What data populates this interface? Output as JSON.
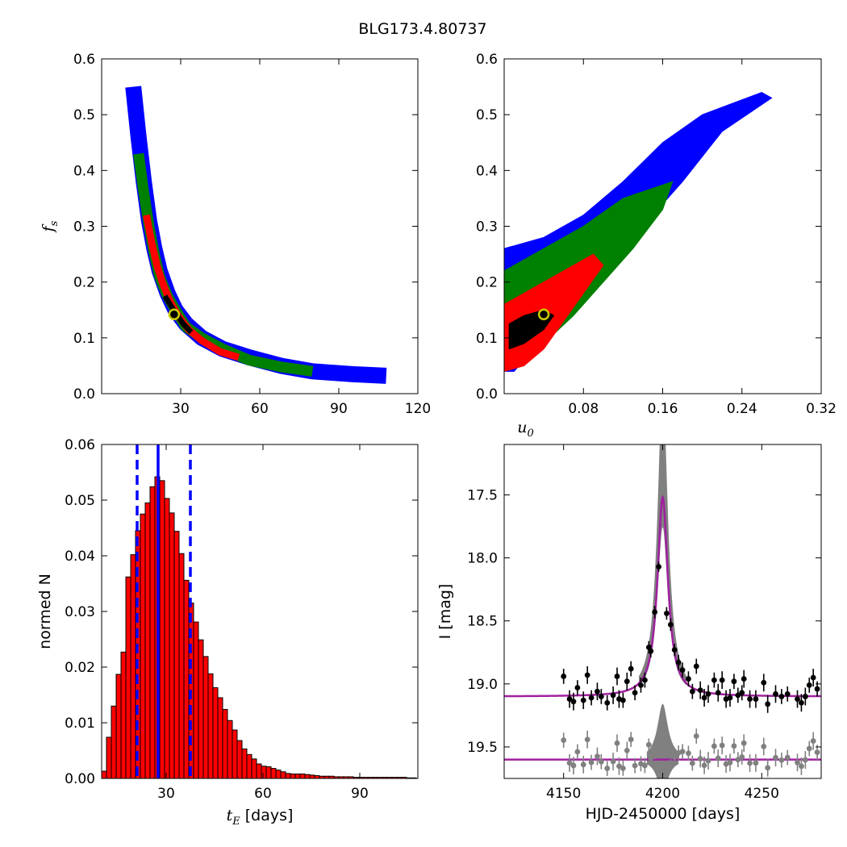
{
  "title": "BLG173.4.80737",
  "colors": {
    "blue": "#0000ff",
    "green": "#008000",
    "red": "#ff0000",
    "black": "#000000",
    "gray": "#808080",
    "purple": "#a020a0",
    "marker_face": "#000000",
    "marker_edge": "#cccc00"
  },
  "chart_data": [
    {
      "id": "tE-fs",
      "type": "heatmap",
      "xlabel": "",
      "ylabel": "f_s",
      "xlim": [
        0,
        120
      ],
      "ylim": [
        0.0,
        0.6
      ],
      "xticks": [
        "30",
        "60",
        "90",
        "120"
      ],
      "yticks": [
        "0.0",
        "0.1",
        "0.2",
        "0.3",
        "0.4",
        "0.5",
        "0.6"
      ],
      "bands": [
        {
          "level": "blue",
          "path": [
            [
              12,
              0.55
            ],
            [
              14,
              0.46
            ],
            [
              16,
              0.38
            ],
            [
              18,
              0.31
            ],
            [
              20,
              0.26
            ],
            [
              22,
              0.22
            ],
            [
              25,
              0.18
            ],
            [
              28,
              0.15
            ],
            [
              32,
              0.125
            ],
            [
              38,
              0.1
            ],
            [
              46,
              0.08
            ],
            [
              56,
              0.065
            ],
            [
              68,
              0.05
            ],
            [
              80,
              0.04
            ],
            [
              95,
              0.035
            ],
            [
              108,
              0.032
            ]
          ],
          "width": 0.018
        },
        {
          "level": "green",
          "path": [
            [
              14,
              0.43
            ],
            [
              16,
              0.36
            ],
            [
              18,
              0.3
            ],
            [
              20,
              0.25
            ],
            [
              22,
              0.21
            ],
            [
              25,
              0.175
            ],
            [
              28,
              0.15
            ],
            [
              32,
              0.12
            ],
            [
              38,
              0.1
            ],
            [
              46,
              0.08
            ],
            [
              56,
              0.06
            ],
            [
              68,
              0.048
            ],
            [
              80,
              0.04
            ]
          ],
          "width": 0.012
        },
        {
          "level": "red",
          "path": [
            [
              17,
              0.32
            ],
            [
              19,
              0.27
            ],
            [
              21,
              0.23
            ],
            [
              23,
              0.2
            ],
            [
              26,
              0.165
            ],
            [
              29,
              0.14
            ],
            [
              33,
              0.115
            ],
            [
              38,
              0.095
            ],
            [
              45,
              0.075
            ],
            [
              52,
              0.065
            ]
          ],
          "width": 0.008
        },
        {
          "level": "black",
          "path": [
            [
              24,
              0.175
            ],
            [
              26,
              0.16
            ],
            [
              28,
              0.145
            ],
            [
              31,
              0.125
            ],
            [
              34,
              0.11
            ]
          ],
          "width": 0.006
        }
      ],
      "best_fit": {
        "x": 27.5,
        "y": 0.142
      }
    },
    {
      "id": "u0-fs",
      "type": "heatmap",
      "xlabel": "u_0",
      "ylabel": "",
      "xlim": [
        0.0,
        0.32
      ],
      "ylim": [
        0.0,
        0.6
      ],
      "xticks": [
        "0.08",
        "0.16",
        "0.24",
        "0.32"
      ],
      "yticks": [
        "0.0",
        "0.1",
        "0.2",
        "0.3",
        "0.4",
        "0.5",
        "0.6"
      ],
      "regions": [
        {
          "level": "blue",
          "polygon": [
            [
              0.0,
              0.26
            ],
            [
              0.04,
              0.28
            ],
            [
              0.08,
              0.32
            ],
            [
              0.12,
              0.38
            ],
            [
              0.16,
              0.45
            ],
            [
              0.2,
              0.5
            ],
            [
              0.26,
              0.54
            ],
            [
              0.27,
              0.53
            ],
            [
              0.22,
              0.47
            ],
            [
              0.18,
              0.38
            ],
            [
              0.14,
              0.3
            ],
            [
              0.1,
              0.22
            ],
            [
              0.06,
              0.14
            ],
            [
              0.03,
              0.08
            ],
            [
              0.01,
              0.04
            ],
            [
              0.0,
              0.04
            ]
          ]
        },
        {
          "level": "green",
          "polygon": [
            [
              0.0,
              0.22
            ],
            [
              0.04,
              0.26
            ],
            [
              0.08,
              0.3
            ],
            [
              0.12,
              0.35
            ],
            [
              0.17,
              0.38
            ],
            [
              0.16,
              0.33
            ],
            [
              0.13,
              0.26
            ],
            [
              0.1,
              0.2
            ],
            [
              0.07,
              0.14
            ],
            [
              0.04,
              0.09
            ],
            [
              0.02,
              0.05
            ],
            [
              0.0,
              0.04
            ]
          ]
        },
        {
          "level": "red",
          "polygon": [
            [
              0.0,
              0.16
            ],
            [
              0.03,
              0.19
            ],
            [
              0.06,
              0.22
            ],
            [
              0.09,
              0.25
            ],
            [
              0.1,
              0.23
            ],
            [
              0.08,
              0.18
            ],
            [
              0.06,
              0.13
            ],
            [
              0.04,
              0.08
            ],
            [
              0.02,
              0.05
            ],
            [
              0.0,
              0.04
            ]
          ]
        },
        {
          "level": "black",
          "polygon": [
            [
              0.005,
              0.125
            ],
            [
              0.02,
              0.14
            ],
            [
              0.04,
              0.15
            ],
            [
              0.05,
              0.14
            ],
            [
              0.04,
              0.115
            ],
            [
              0.02,
              0.09
            ],
            [
              0.005,
              0.08
            ]
          ]
        }
      ],
      "best_fit": {
        "x": 0.04,
        "y": 0.142
      }
    },
    {
      "id": "tE-hist",
      "type": "bar",
      "xlabel": "t_E [days]",
      "ylabel": "normed N",
      "xlim": [
        10,
        108
      ],
      "ylim": [
        0.0,
        0.06
      ],
      "xticks": [
        "30",
        "60",
        "90"
      ],
      "yticks": [
        "0.00",
        "0.01",
        "0.02",
        "0.03",
        "0.04",
        "0.05",
        "0.06"
      ],
      "bin_start": 10,
      "bin_width": 1.5,
      "values": [
        0.0013,
        0.0074,
        0.013,
        0.0187,
        0.0227,
        0.0362,
        0.0402,
        0.0445,
        0.0475,
        0.0495,
        0.0524,
        0.0542,
        0.0535,
        0.0503,
        0.0477,
        0.0444,
        0.0404,
        0.0356,
        0.0315,
        0.0281,
        0.0249,
        0.0219,
        0.0188,
        0.0163,
        0.0145,
        0.0124,
        0.0104,
        0.0087,
        0.0068,
        0.0053,
        0.0043,
        0.0035,
        0.0026,
        0.0022,
        0.0021,
        0.0018,
        0.0015,
        0.0012,
        0.0009,
        0.0008,
        0.0008,
        0.0008,
        0.0007,
        0.0006,
        0.0005,
        0.0004,
        0.0004,
        0.0004,
        0.0003,
        0.0003,
        0.0003,
        0.0003,
        0.0002,
        0.0002,
        0.0002,
        0.0002,
        0.0002,
        0.0002,
        0.0002,
        0.0002,
        0.0002,
        0.0002,
        0.0002,
        0.0001,
        0.0001
      ],
      "median": 27.5,
      "interval": [
        21.0,
        37.5
      ]
    },
    {
      "id": "lightcurve",
      "type": "scatter",
      "xlabel": "HJD-2450000 [days]",
      "ylabel": "I [mag]",
      "xlim": [
        4120,
        4280
      ],
      "ylim": [
        19.75,
        17.1
      ],
      "xticks": [
        "4150",
        "4200",
        "4250"
      ],
      "yticks": [
        "17.5",
        "18.0",
        "18.5",
        "19.0",
        "19.5"
      ],
      "model": {
        "t0": 4200,
        "baseline": 19.1,
        "peak": 17.52,
        "tau": 3.2
      },
      "residual_offset": 19.6,
      "points": [
        {
          "t": 4150,
          "mag": 18.94,
          "err": 0.06
        },
        {
          "t": 4153,
          "mag": 19.12,
          "err": 0.07
        },
        {
          "t": 4155,
          "mag": 19.14,
          "err": 0.07
        },
        {
          "t": 4157,
          "mag": 19.03,
          "err": 0.06
        },
        {
          "t": 4160,
          "mag": 19.13,
          "err": 0.07
        },
        {
          "t": 4162,
          "mag": 18.93,
          "err": 0.07
        },
        {
          "t": 4164,
          "mag": 19.11,
          "err": 0.06
        },
        {
          "t": 4167,
          "mag": 19.06,
          "err": 0.07
        },
        {
          "t": 4169,
          "mag": 19.1,
          "err": 0.06
        },
        {
          "t": 4172,
          "mag": 19.15,
          "err": 0.06
        },
        {
          "t": 4175,
          "mag": 19.09,
          "err": 0.07
        },
        {
          "t": 4177,
          "mag": 18.94,
          "err": 0.07
        },
        {
          "t": 4178,
          "mag": 19.12,
          "err": 0.07
        },
        {
          "t": 4180,
          "mag": 19.13,
          "err": 0.06
        },
        {
          "t": 4182,
          "mag": 18.98,
          "err": 0.07
        },
        {
          "t": 4184,
          "mag": 18.88,
          "err": 0.06
        },
        {
          "t": 4186,
          "mag": 19.07,
          "err": 0.06
        },
        {
          "t": 4189,
          "mag": 19.01,
          "err": 0.06
        },
        {
          "t": 4191,
          "mag": 18.97,
          "err": 0.06
        },
        {
          "t": 4193,
          "mag": 18.71,
          "err": 0.05
        },
        {
          "t": 4194,
          "mag": 18.74,
          "err": 0.05
        },
        {
          "t": 4196,
          "mag": 18.43,
          "err": 0.05
        },
        {
          "t": 4198,
          "mag": 18.07,
          "err": 0.04
        },
        {
          "t": 4202,
          "mag": 18.44,
          "err": 0.05
        },
        {
          "t": 4204,
          "mag": 18.53,
          "err": 0.05
        },
        {
          "t": 4206,
          "mag": 18.73,
          "err": 0.05
        },
        {
          "t": 4208,
          "mag": 18.83,
          "err": 0.06
        },
        {
          "t": 4210,
          "mag": 18.89,
          "err": 0.06
        },
        {
          "t": 4213,
          "mag": 18.96,
          "err": 0.06
        },
        {
          "t": 4215,
          "mag": 19.06,
          "err": 0.06
        },
        {
          "t": 4217,
          "mag": 18.86,
          "err": 0.06
        },
        {
          "t": 4219,
          "mag": 19.05,
          "err": 0.07
        },
        {
          "t": 4221,
          "mag": 19.11,
          "err": 0.07
        },
        {
          "t": 4223,
          "mag": 19.08,
          "err": 0.07
        },
        {
          "t": 4226,
          "mag": 18.97,
          "err": 0.06
        },
        {
          "t": 4228,
          "mag": 19.07,
          "err": 0.07
        },
        {
          "t": 4230,
          "mag": 18.97,
          "err": 0.07
        },
        {
          "t": 4232,
          "mag": 19.12,
          "err": 0.07
        },
        {
          "t": 4234,
          "mag": 19.11,
          "err": 0.07
        },
        {
          "t": 4236,
          "mag": 18.98,
          "err": 0.06
        },
        {
          "t": 4238,
          "mag": 19.09,
          "err": 0.06
        },
        {
          "t": 4240,
          "mag": 19.07,
          "err": 0.06
        },
        {
          "t": 4241,
          "mag": 18.96,
          "err": 0.07
        },
        {
          "t": 4244,
          "mag": 19.12,
          "err": 0.07
        },
        {
          "t": 4247,
          "mag": 19.12,
          "err": 0.07
        },
        {
          "t": 4251,
          "mag": 18.99,
          "err": 0.07
        },
        {
          "t": 4253,
          "mag": 19.16,
          "err": 0.07
        },
        {
          "t": 4257,
          "mag": 19.08,
          "err": 0.07
        },
        {
          "t": 4260,
          "mag": 19.1,
          "err": 0.06
        },
        {
          "t": 4263,
          "mag": 19.08,
          "err": 0.06
        },
        {
          "t": 4268,
          "mag": 19.12,
          "err": 0.07
        },
        {
          "t": 4270,
          "mag": 19.15,
          "err": 0.07
        },
        {
          "t": 4272,
          "mag": 19.1,
          "err": 0.07
        },
        {
          "t": 4274,
          "mag": 19.01,
          "err": 0.06
        },
        {
          "t": 4276,
          "mag": 18.95,
          "err": 0.07
        },
        {
          "t": 4278,
          "mag": 19.04,
          "err": 0.06
        }
      ]
    }
  ]
}
